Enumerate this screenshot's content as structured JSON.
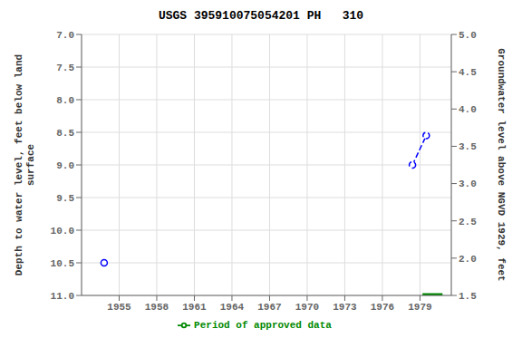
{
  "chart_data": {
    "type": "line",
    "title": "USGS 395910075054201 PH   310",
    "ylabel": "Depth to water level, feet below land\nsurface",
    "y2label": "Groundwater level above NGVD 1929, feet",
    "xlim": [
      1952.0,
      1981.5
    ],
    "xticks": [
      1955,
      1958,
      1961,
      1964,
      1967,
      1970,
      1973,
      1976,
      1979
    ],
    "ylim": [
      11.0,
      7.0
    ],
    "yticks": [
      {
        "value": 7,
        "label": "7.0"
      },
      7.5,
      {
        "value": 8,
        "label": "8.0"
      },
      8.5,
      {
        "value": 9,
        "label": "9.0"
      },
      9.5,
      {
        "value": 10,
        "label": "10.0"
      },
      10.5,
      {
        "value": 11,
        "label": "11.0"
      }
    ],
    "y2lim": [
      1.5,
      5.0
    ],
    "y2ticks": [
      1.5,
      {
        "value": 2,
        "label": "2.0"
      },
      2.5,
      {
        "value": 3,
        "label": "3.0"
      },
      3.5,
      {
        "value": 4,
        "label": "4.0"
      },
      4.5,
      {
        "value": 5,
        "label": "5.0"
      }
    ],
    "grid": true,
    "series": [
      {
        "x": [
          1953.8
        ],
        "values": [
          10.5
        ],
        "color": "blue",
        "marker": "circle",
        "line_style": "none"
      },
      {
        "x": [
          1978.4,
          1979.5
        ],
        "values": [
          9.0,
          8.55
        ],
        "color": "blue",
        "marker": "circle",
        "line_style": "dashed"
      },
      {
        "name": "Period of approved data",
        "x": [
          1979.2,
          1980.8
        ],
        "values": [
          11.0,
          11.0
        ],
        "color": "#008800",
        "marker": "none",
        "line_style": "solid"
      }
    ]
  }
}
